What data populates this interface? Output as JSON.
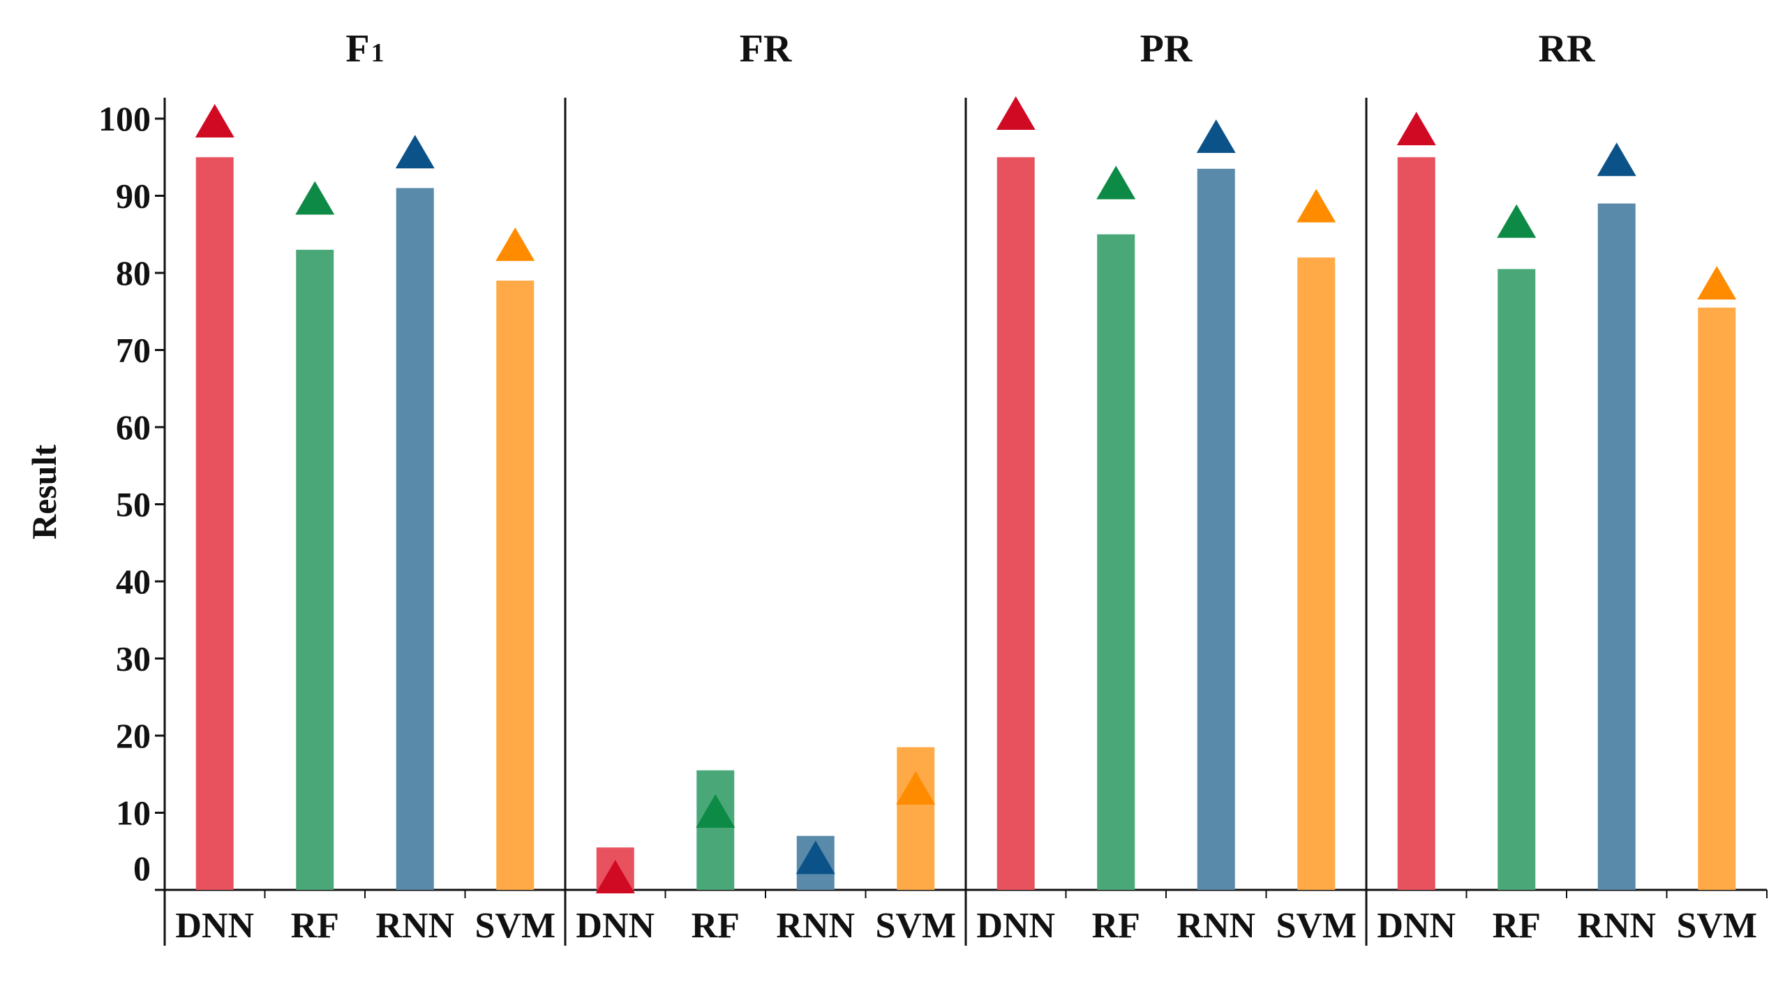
{
  "chart_data": {
    "type": "bar",
    "ylabel": "Result",
    "ylim": [
      0,
      100
    ],
    "yticks": [
      0,
      10,
      20,
      30,
      40,
      50,
      60,
      70,
      80,
      90,
      100
    ],
    "categories": [
      "DNN",
      "RF",
      "RNN",
      "SVM"
    ],
    "marker": "triangle",
    "colors": {
      "DNN": {
        "bar": "#e8525f",
        "marker": "#d10a24"
      },
      "RF": {
        "bar": "#4aa878",
        "marker": "#0d8a45"
      },
      "RNN": {
        "bar": "#5a8aaa",
        "marker": "#0b5289"
      },
      "SVM": {
        "bar": "#ffaa47",
        "marker": "#ff8c00"
      }
    },
    "panels": [
      {
        "title": "F1",
        "title_main": "F",
        "title_sub": "1",
        "bars": [
          95,
          83,
          91,
          79
        ],
        "markers": [
          99,
          89,
          95,
          83
        ]
      },
      {
        "title": "FR",
        "bars": [
          5.5,
          15.5,
          7,
          18.5
        ],
        "markers": [
          1,
          9.5,
          3.5,
          12.5
        ]
      },
      {
        "title": "PR",
        "bars": [
          95,
          85,
          93.5,
          82
        ],
        "markers": [
          100,
          91,
          97,
          88
        ]
      },
      {
        "title": "RR",
        "bars": [
          95,
          80.5,
          89,
          75.5
        ],
        "markers": [
          98,
          86,
          94,
          78
        ]
      }
    ]
  }
}
